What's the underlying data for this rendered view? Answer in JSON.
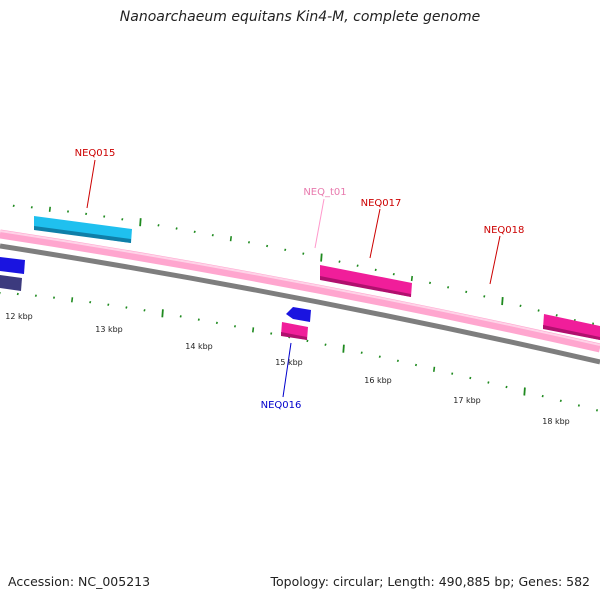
{
  "title": "Nanoarchaeum equitans Kin4-M, complete genome",
  "footer": {
    "accession": "Accession: NC_005213",
    "summary": "Topology: circular; Length: 490,885 bp; Genes: 582"
  },
  "colors": {
    "cds": "#f01e9a",
    "cds_edge": "#b0106e",
    "cds_blue": "#1fc0ef",
    "cds_blue_edge": "#0f7fa8",
    "cds_dark_blue": "#1a14e0",
    "cds_navy": "#3c3a7e",
    "trna": "#ff99cc",
    "backbone_pink": "#ffa6cf",
    "backbone_gray": "#8a8a8a",
    "tick": "#1f8a1f",
    "gene_label": "#cc0000",
    "trna_label": "#e87aae",
    "reverse_label": "#0000cc"
  },
  "ruler": {
    "ticks": [
      {
        "label": "12 kbp",
        "kbp": 12
      },
      {
        "label": "13 kbp",
        "kbp": 13
      },
      {
        "label": "14 kbp",
        "kbp": 14
      },
      {
        "label": "15 kbp",
        "kbp": 15
      },
      {
        "label": "16 kbp",
        "kbp": 16
      },
      {
        "label": "17 kbp",
        "kbp": 17
      },
      {
        "label": "18 kbp",
        "kbp": 18
      }
    ]
  },
  "features": [
    {
      "name": "NEQ015",
      "type": "CDS",
      "strand": "+"
    },
    {
      "name": "NEQ_t01",
      "type": "tRNA",
      "strand": "+"
    },
    {
      "name": "NEQ017",
      "type": "CDS",
      "strand": "+"
    },
    {
      "name": "NEQ018",
      "type": "CDS",
      "strand": "+"
    },
    {
      "name": "NEQ016",
      "type": "CDS",
      "strand": "-"
    }
  ]
}
